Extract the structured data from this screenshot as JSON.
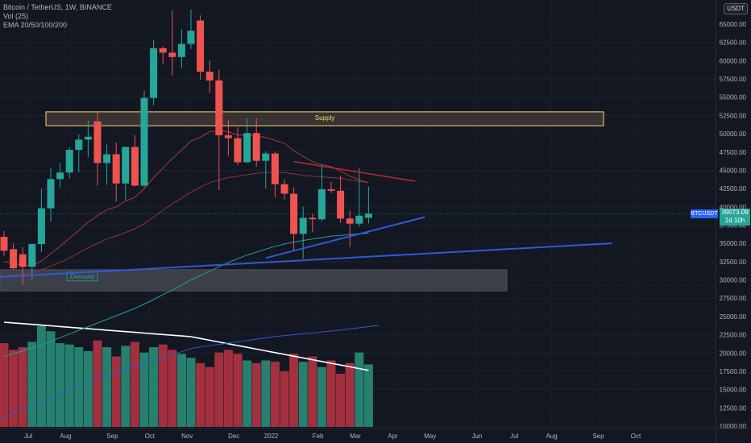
{
  "header": {
    "symbol_line": "Bitcoin / TetherUS, 1W, BINANCE",
    "vol_line": "Vol (25)",
    "ema_line": "EMA 20/50/100/200",
    "currency_badge": "USDT"
  },
  "price_tag": {
    "price": "39073.09",
    "countdown": "1d 10h",
    "symbol": "BTCUSDT"
  },
  "colors": {
    "background": "#131722",
    "up": "#26a69a",
    "down": "#ef5350",
    "vol_up": "#26806f",
    "vol_down": "#a3303f",
    "supply_fill": "#3a3232",
    "supply_border": "#f5d76e",
    "demand_fill": "#3c3f47",
    "trend_blue": "#2e5ad8",
    "trend_red": "#b22a34",
    "ema20": "#a8393a",
    "ema50": "#8c3534",
    "ema100": "#1fa393",
    "ema200": "#2e5ad8",
    "vol_ma": "#ffffff"
  },
  "chart_data": {
    "type": "candlestick",
    "title": "Bitcoin / TetherUS, 1W, BINANCE",
    "y_axis": {
      "ylim": [
        9000,
        67000
      ],
      "ticks": [
        10000,
        12500,
        15000,
        17500,
        20000,
        22500,
        25000,
        27500,
        30000,
        32500,
        35000,
        37500,
        40000,
        42500,
        45000,
        47500,
        50000,
        52500,
        55000,
        57500,
        60000,
        62500,
        65000
      ],
      "tick_labels": [
        "10000.00",
        "12500.00",
        "15000.00",
        "17500.00",
        "20000.00",
        "22500.00",
        "25000.00",
        "27500.00",
        "30000.00",
        "32500.00",
        "35000.00",
        "37500.00",
        "40000.00",
        "42500.00",
        "45000.00",
        "47500.00",
        "50000.00",
        "52500.00",
        "55000.00",
        "57500.00",
        "60000.00",
        "62500.00",
        "65000.00"
      ],
      "top_partial_label": "6"
    },
    "x_axis": {
      "labels": [
        "Jul",
        "Aug",
        "Sep",
        "Oct",
        "Nov",
        "Dec",
        "2022",
        "Feb",
        "Mar",
        "Apr",
        "May",
        "Jun",
        "Jul",
        "Aug",
        "Sep",
        "Oct"
      ],
      "label_week_index": [
        0,
        4,
        9,
        13,
        17,
        22,
        26,
        31,
        35,
        39,
        43,
        48,
        52,
        56,
        61,
        65
      ]
    },
    "candles": [
      {
        "o": 35900,
        "h": 36700,
        "l": 33300,
        "c": 34000
      },
      {
        "o": 34200,
        "h": 35000,
        "l": 31400,
        "c": 31600
      },
      {
        "o": 33500,
        "h": 34500,
        "l": 29300,
        "c": 31800
      },
      {
        "o": 31800,
        "h": 35000,
        "l": 30000,
        "c": 34900
      },
      {
        "o": 34900,
        "h": 42500,
        "l": 33800,
        "c": 39800
      },
      {
        "o": 39800,
        "h": 45300,
        "l": 38000,
        "c": 43800
      },
      {
        "o": 43800,
        "h": 46000,
        "l": 42600,
        "c": 44700
      },
      {
        "o": 44700,
        "h": 48200,
        "l": 43900,
        "c": 47800
      },
      {
        "o": 47800,
        "h": 49900,
        "l": 44700,
        "c": 49200
      },
      {
        "o": 49200,
        "h": 51800,
        "l": 46800,
        "c": 49600
      },
      {
        "o": 51700,
        "h": 52900,
        "l": 42900,
        "c": 46000
      },
      {
        "o": 46000,
        "h": 48500,
        "l": 43000,
        "c": 47200
      },
      {
        "o": 47200,
        "h": 48800,
        "l": 40700,
        "c": 43200
      },
      {
        "o": 43200,
        "h": 48200,
        "l": 40900,
        "c": 48200
      },
      {
        "o": 48200,
        "h": 49800,
        "l": 42800,
        "c": 42900
      },
      {
        "o": 42900,
        "h": 55900,
        "l": 42700,
        "c": 54900
      },
      {
        "o": 54900,
        "h": 62900,
        "l": 53900,
        "c": 61700
      },
      {
        "o": 61700,
        "h": 62000,
        "l": 59500,
        "c": 61100
      },
      {
        "o": 61100,
        "h": 66900,
        "l": 58000,
        "c": 60500
      },
      {
        "o": 60500,
        "h": 64300,
        "l": 59000,
        "c": 62300
      },
      {
        "o": 62300,
        "h": 67000,
        "l": 61600,
        "c": 64100
      },
      {
        "o": 65500,
        "h": 66200,
        "l": 57400,
        "c": 58500
      },
      {
        "o": 58500,
        "h": 60000,
        "l": 55600,
        "c": 57300
      },
      {
        "o": 57300,
        "h": 58800,
        "l": 42300,
        "c": 49800
      },
      {
        "o": 49800,
        "h": 51900,
        "l": 47000,
        "c": 49400
      },
      {
        "o": 49400,
        "h": 50900,
        "l": 45700,
        "c": 46100
      },
      {
        "o": 46100,
        "h": 52100,
        "l": 46000,
        "c": 50100
      },
      {
        "o": 50100,
        "h": 52100,
        "l": 45500,
        "c": 46300
      },
      {
        "o": 46300,
        "h": 47600,
        "l": 42500,
        "c": 47300
      },
      {
        "o": 47300,
        "h": 47600,
        "l": 41300,
        "c": 43100
      },
      {
        "o": 43100,
        "h": 43800,
        "l": 41000,
        "c": 41800
      },
      {
        "o": 41800,
        "h": 42700,
        "l": 34000,
        "c": 36300
      },
      {
        "o": 36300,
        "h": 40000,
        "l": 32900,
        "c": 38500
      },
      {
        "o": 38500,
        "h": 39000,
        "l": 36500,
        "c": 38300
      },
      {
        "o": 38300,
        "h": 45800,
        "l": 38000,
        "c": 42400
      },
      {
        "o": 42400,
        "h": 43400,
        "l": 41900,
        "c": 42200
      },
      {
        "o": 42200,
        "h": 44300,
        "l": 37800,
        "c": 38400
      },
      {
        "o": 38400,
        "h": 39500,
        "l": 34500,
        "c": 37700
      },
      {
        "o": 37700,
        "h": 45300,
        "l": 37300,
        "c": 38800
      },
      {
        "o": 38500,
        "h": 42800,
        "l": 37700,
        "c": 39073
      }
    ],
    "volume": {
      "ylim": [
        0,
        100
      ],
      "values": [
        63,
        58,
        60,
        64,
        76,
        72,
        63,
        62,
        60,
        57,
        65,
        60,
        53,
        61,
        64,
        56,
        60,
        62,
        58,
        55,
        52,
        48,
        45,
        56,
        58,
        55,
        50,
        48,
        50,
        49,
        42,
        55,
        49,
        53,
        45,
        50,
        40,
        48,
        56,
        47
      ]
    },
    "moving_averages": [
      {
        "name": "EMA 20",
        "values": [
          32500,
          32300,
          32000,
          31900,
          32600,
          33600,
          34600,
          35700,
          36800,
          37900,
          38800,
          39600,
          40000,
          40800,
          41300,
          42500,
          44000,
          45300,
          46600,
          47800,
          49000,
          49500,
          50300,
          50400,
          50300,
          49800,
          49800,
          49700,
          49500,
          49100,
          48700,
          47700,
          46900,
          46200,
          45800,
          45500,
          44900,
          44200,
          43700,
          43300
        ]
      },
      {
        "name": "EMA 50",
        "values": [
          30500,
          30700,
          30800,
          31000,
          31400,
          31900,
          32400,
          33000,
          33700,
          34400,
          35000,
          35600,
          36000,
          36500,
          37000,
          37700,
          38600,
          39500,
          40400,
          41200,
          42000,
          42700,
          43300,
          43700,
          44000,
          44200,
          44400,
          44600,
          44700,
          44700,
          44700,
          44500,
          44300,
          44200,
          44100,
          44000,
          43900,
          43700,
          43500,
          43300
        ]
      },
      {
        "name": "EMA 100",
        "values": [
          19500,
          19900,
          20300,
          20700,
          21100,
          21600,
          22100,
          22600,
          23100,
          23600,
          24100,
          24600,
          25100,
          25600,
          26100,
          26700,
          27300,
          28000,
          28600,
          29300,
          30000,
          30600,
          31200,
          31800,
          32400,
          32900,
          33400,
          33800,
          34200,
          34600,
          34900,
          35200,
          35400,
          35600,
          35800,
          36000,
          36100,
          36200,
          36300,
          36400
        ]
      }
    ],
    "zones": [
      {
        "label": "Supply",
        "y_bottom": 51100,
        "y_top": 53000
      },
      {
        "label": "Demand",
        "y_bottom": 28500,
        "y_top": 31400
      }
    ],
    "trendlines": [
      {
        "color": "blue",
        "from": {
          "week": -2,
          "price": 30300
        },
        "to": {
          "week": 65,
          "price": 35000
        }
      },
      {
        "color": "blue",
        "from": {
          "week": 28,
          "price": 33000
        },
        "to": {
          "week": 45,
          "price": 38600
        }
      },
      {
        "color": "red",
        "from": {
          "week": 31,
          "price": 46200
        },
        "to": {
          "week": 44,
          "price": 43500
        }
      }
    ],
    "current_price": 39073.09
  }
}
